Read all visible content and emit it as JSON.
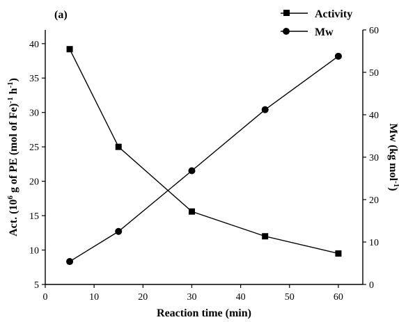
{
  "chart_data": {
    "type": "line",
    "panel_label": "(a)",
    "xlabel": "Reaction time (min)",
    "xlim": [
      0,
      65
    ],
    "xticks": [
      0,
      10,
      20,
      30,
      40,
      50,
      60
    ],
    "y_left": {
      "label_main": "Act. (10",
      "label_sup1": "6",
      "label_mid": " g of PE (mol of Fe)",
      "label_sup2": "-1",
      "label_end": " h",
      "label_sup3": "-1",
      "label_close": ")",
      "lim": [
        5,
        42
      ],
      "ticks": [
        5,
        10,
        15,
        20,
        25,
        30,
        35,
        40
      ]
    },
    "y_right": {
      "label_main": "Mw (kg mol",
      "label_sup": "-1",
      "label_close": ")",
      "lim": [
        0,
        60
      ],
      "ticks": [
        0,
        10,
        20,
        30,
        40,
        50,
        60
      ]
    },
    "x": [
      5,
      15,
      30,
      45,
      60
    ],
    "series": [
      {
        "name": "Activity",
        "axis": "left",
        "marker": "square",
        "values": [
          39.2,
          25.0,
          15.6,
          12.0,
          9.5
        ]
      },
      {
        "name": "Mw",
        "axis": "right",
        "marker": "circle",
        "values": [
          5.4,
          12.5,
          26.8,
          41.2,
          53.8
        ]
      }
    ],
    "legend_position": "top-right"
  }
}
